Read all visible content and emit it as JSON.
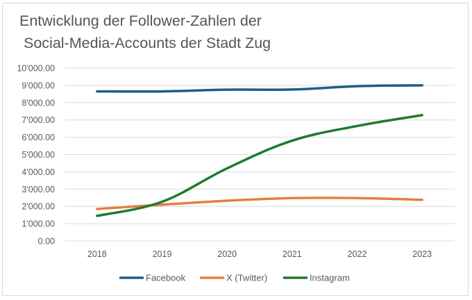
{
  "chart_data": {
    "type": "line",
    "title": [
      "Entwicklung der Follower-Zahlen der",
      "Social-Media-Accounts der Stadt Zug"
    ],
    "xlabel": "",
    "ylabel": "",
    "categories": [
      "2018",
      "2019",
      "2020",
      "2021",
      "2022",
      "2023"
    ],
    "ylim": [
      0,
      10000
    ],
    "ytick_labels": [
      "0.00",
      "1'000.00",
      "2'000.00",
      "3'000.00",
      "4'000.00",
      "5'000.00",
      "6'000.00",
      "7'000.00",
      "8'000.00",
      "9'000.00",
      "10'000.00"
    ],
    "grid": true,
    "legend_position": "bottom",
    "series": [
      {
        "name": "Facebook",
        "color": "#1f5c82",
        "values": [
          8650,
          8650,
          8750,
          8760,
          8950,
          9000
        ]
      },
      {
        "name": "X (Twitter)",
        "color": "#e87d3e",
        "values": [
          1850,
          2100,
          2330,
          2480,
          2480,
          2380
        ]
      },
      {
        "name": "Instagram",
        "color": "#1f7a2e",
        "values": [
          1450,
          2270,
          4200,
          5800,
          6650,
          7280
        ]
      }
    ]
  }
}
